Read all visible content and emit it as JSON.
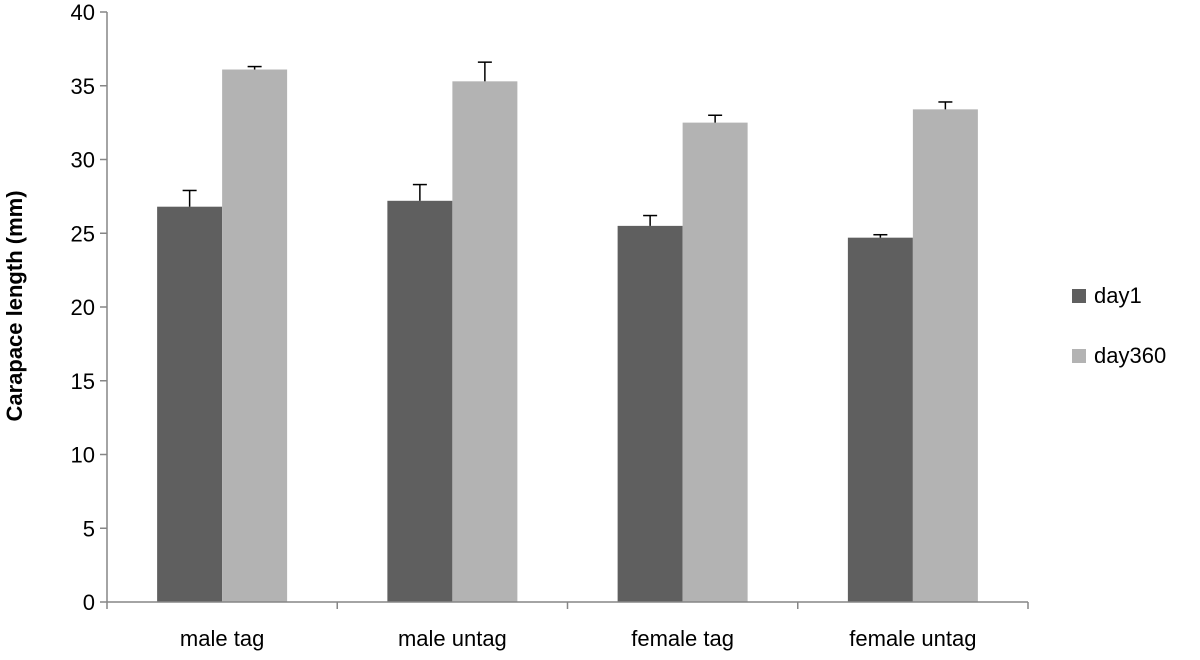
{
  "chart_data": {
    "type": "bar",
    "title": "",
    "xlabel": "",
    "ylabel": "Carapace length (mm)",
    "ylim": [
      0,
      40
    ],
    "yticks": [
      0,
      5,
      10,
      15,
      20,
      25,
      30,
      35,
      40
    ],
    "categories": [
      "male tag",
      "male untag",
      "female tag",
      "female untag"
    ],
    "series": [
      {
        "name": "day1",
        "color": "#5f5f5f",
        "values": [
          26.8,
          27.2,
          25.5,
          24.7
        ],
        "errors": [
          1.1,
          1.1,
          0.7,
          0.2
        ]
      },
      {
        "name": "day360",
        "color": "#b3b3b3",
        "values": [
          36.1,
          35.3,
          32.5,
          33.4
        ],
        "errors": [
          0.2,
          1.3,
          0.5,
          0.5
        ]
      }
    ],
    "legend_position": "right"
  }
}
